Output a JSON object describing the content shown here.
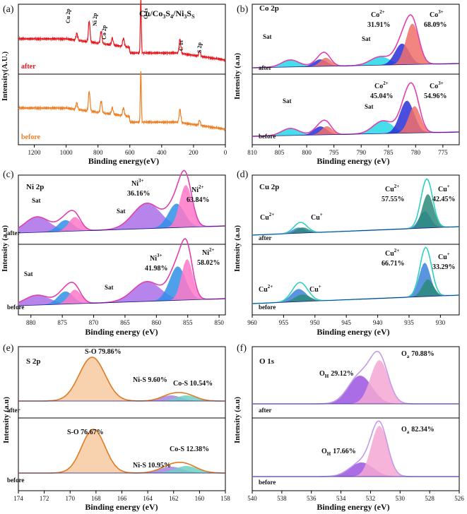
{
  "chart_data": [
    {
      "type": "line",
      "panel": "(a)",
      "title": "Cu/Co3S4/Ni3S2",
      "xlabel": "Binding energy(eV)",
      "ylabel": "Intensity(A.U.)",
      "xlim": [
        1300,
        0
      ],
      "xticks": [
        1200,
        1000,
        800,
        600,
        400,
        200,
        0
      ],
      "series": [
        {
          "name": "after",
          "color": "#e8151c"
        },
        {
          "name": "before",
          "color": "#ee7d22"
        }
      ],
      "peak_labels": [
        "Cu 2p",
        "Ni 2p",
        "Co 2p",
        "O 1s",
        "C 1s",
        "S 2p"
      ]
    },
    {
      "type": "area",
      "panel": "(b)",
      "title": "Co 2p",
      "xlabel": "Binding energy (eV)",
      "ylabel": "Intensity (a.u)",
      "xlim": [
        810,
        772
      ],
      "xticks": [
        810,
        805,
        800,
        795,
        790,
        785,
        780,
        775
      ],
      "series": [
        {
          "name": "after",
          "annotations": [
            {
              "label": "Sat",
              "position": 802.5
            },
            {
              "label": "Sat",
              "position": 786
            },
            {
              "label": "Co2+",
              "percent": "31.91%",
              "position": 782.5
            },
            {
              "label": "Co3+",
              "percent": "68.09%",
              "position": 780.6
            }
          ]
        },
        {
          "name": "before",
          "annotations": [
            {
              "label": "Sat",
              "position": 802.5
            },
            {
              "label": "Sat",
              "position": 786
            },
            {
              "label": "Co2+",
              "percent": "45.04%",
              "position": 781.5
            },
            {
              "label": "Co3+",
              "percent": "54.96%",
              "position": 780.2
            }
          ]
        }
      ]
    },
    {
      "type": "area",
      "panel": "(c)",
      "title": "Ni 2p",
      "xlabel": "Binding energy (eV)",
      "ylabel": "Intensity (a.u)",
      "xlim": [
        882,
        849
      ],
      "xticks": [
        880,
        875,
        870,
        865,
        860,
        855,
        850
      ],
      "series": [
        {
          "name": "after",
          "annotations": [
            {
              "label": "Sat",
              "position": 879
            },
            {
              "label": "Sat",
              "position": 861.5
            },
            {
              "label": "Ni 3+",
              "percent": "36.16%",
              "position": 856.8
            },
            {
              "label": "Ni 2+",
              "percent": "63.84%",
              "position": 855.3
            }
          ]
        },
        {
          "name": "before",
          "annotations": [
            {
              "label": "Sat",
              "position": 879
            },
            {
              "label": "Sat",
              "position": 861.5
            },
            {
              "label": "Ni 3+",
              "percent": "41.98%",
              "position": 856.5
            },
            {
              "label": "Ni 2+",
              "percent": "58.02%",
              "position": 855.1
            }
          ]
        }
      ]
    },
    {
      "type": "area",
      "panel": "(d)",
      "title": "Cu 2p",
      "xlabel": "Binding energy (eV)",
      "ylabel": "Intensity (a.u)",
      "xlim": [
        960,
        927
      ],
      "xticks": [
        960,
        955,
        950,
        945,
        940,
        935,
        930
      ],
      "series": [
        {
          "name": "after",
          "annotations": [
            {
              "label": "Cu2+",
              "position": 952.5
            },
            {
              "label": "Cu+",
              "position": 952
            },
            {
              "label": "Cu2+",
              "percent": "57.55%",
              "position": 932.5
            },
            {
              "label": "Cu+",
              "percent": "42.45%",
              "position": 932
            }
          ]
        },
        {
          "name": "before",
          "annotations": [
            {
              "label": "Cu2+",
              "position": 952.5
            },
            {
              "label": "Cu+",
              "position": 952
            },
            {
              "label": "Cu2+",
              "percent": "66.71%",
              "position": 932.5
            },
            {
              "label": "Cu+",
              "percent": "33.29%",
              "position": 932
            }
          ]
        }
      ]
    },
    {
      "type": "area",
      "panel": "(e)",
      "title": "S 2p",
      "xlabel": "Binding energy (eV)",
      "ylabel": "Intensity (a.u)",
      "xlim": [
        174,
        158
      ],
      "xticks": [
        174,
        172,
        170,
        168,
        166,
        164,
        162,
        160,
        158
      ],
      "series": [
        {
          "name": "after",
          "annotations": [
            {
              "label": "S-O",
              "percent": "79.86%",
              "position": 168.3
            },
            {
              "label": "Ni-S",
              "percent": "9.60%",
              "position": 162.2
            },
            {
              "label": "Co-S",
              "percent": "10.54%",
              "position": 161
            }
          ]
        },
        {
          "name": "before",
          "annotations": [
            {
              "label": "S-O",
              "percent": "76.67%",
              "position": 168.2
            },
            {
              "label": "Ni-S",
              "percent": "10.95%",
              "position": 162.2
            },
            {
              "label": "Co-S",
              "percent": "12.38%",
              "position": 161
            }
          ]
        }
      ]
    },
    {
      "type": "area",
      "panel": "(f)",
      "title": "O 1s",
      "xlabel": "Binding energy (eV)",
      "ylabel": "Intensity (a.u)",
      "xlim": [
        540,
        526
      ],
      "xticks": [
        540,
        538,
        536,
        534,
        532,
        530,
        528,
        526
      ],
      "series": [
        {
          "name": "after",
          "annotations": [
            {
              "label": "OH",
              "percent": "29.12%",
              "position": 532.7
            },
            {
              "label": "Oa",
              "percent": "70.88%",
              "position": 531.4
            }
          ]
        },
        {
          "name": "before",
          "annotations": [
            {
              "label": "OH",
              "percent": "17.66%",
              "position": 532.6
            },
            {
              "label": "Oa",
              "percent": "82.34%",
              "position": 531.4
            }
          ]
        }
      ]
    }
  ],
  "text": {
    "a_panel": "(a)",
    "a_title_main": "Cu/Co",
    "a_title_s3": "3",
    "a_title_s": "S",
    "a_title_s4": "4",
    "a_title_ni": "/Ni",
    "a_title_s2": "S",
    "a_after": "after",
    "a_before": "before",
    "a_cu2p": "Cu 2p",
    "a_ni2p": "Ni 2p",
    "a_co2p": "Co 2p",
    "a_o1s": "O 1s",
    "a_c1s": "C 1s",
    "a_s2p": "S 2p",
    "a_xlabel": "Binding energy(eV)",
    "a_ylabel": "Intensity(A.U.)",
    "b_panel": "(b)",
    "b_title": "Co 2p",
    "b_after": "after",
    "b_before": "before",
    "b_sat": "Sat",
    "b_co": "Co",
    "b_sup2": "2+",
    "b_sup3": "3+",
    "b_after_co2": "31.91%",
    "b_after_co3": "68.09%",
    "b_before_co2": "45.04%",
    "b_before_co3": "54.96%",
    "b_xlabel": "Binding energy (eV)",
    "b_ylabel": "Intensity (a.u)",
    "c_panel": "(c)",
    "c_title": "Ni 2p",
    "c_after": "after",
    "c_before": "before",
    "c_sat": "Sat",
    "c_ni": "Ni",
    "c_sup3": "3+",
    "c_sup2": "2+",
    "c_after_ni3": "36.16%",
    "c_after_ni2": "63.84%",
    "c_before_ni3": "41.98%",
    "c_before_ni2": "58.02%",
    "c_xlabel": "Binding energy (eV)",
    "c_ylabel": "Intensity (a.u)",
    "d_panel": "(d)",
    "d_title": "Cu 2p",
    "d_after": "after",
    "d_before": "before",
    "d_cu": "Cu",
    "d_sup2": "2+",
    "d_supp": "+",
    "d_after_cu2": "57.55%",
    "d_after_cu1": "42.45%",
    "d_before_cu2": "66.71%",
    "d_before_cu1": "33.29%",
    "d_xlabel": "Binding energy (eV)",
    "d_ylabel": "Intensity (a.u)",
    "e_panel": "(e)",
    "e_title": "S 2p",
    "e_after": "after",
    "e_before": "before",
    "e_after_so": "S-O  79.86%",
    "e_after_nis": "Ni-S  9.60%",
    "e_after_cos": "Co-S  10.54%",
    "e_before_so": "S-O  76.67%",
    "e_before_nis": "Ni-S  10.95%",
    "e_before_cos": "Co-S  12.38%",
    "e_xlabel": "Binding energy (eV)",
    "e_ylabel": "Intensity (a.u)",
    "f_panel": "(f)",
    "f_title": "O 1s",
    "f_after": "after",
    "f_before": "before",
    "f_o": "O",
    "f_subh": "H",
    "f_suba": "a",
    "f_after_oh": "29.12%",
    "f_after_oa": "70.88%",
    "f_before_oh": "17.66%",
    "f_before_oa": "82.34%",
    "f_xlabel": "Binding energy (eV)",
    "f_ylabel": "Intensity (a.u)"
  },
  "colors": {
    "after_red": "#e8151c",
    "before_orange": "#ee7d22",
    "co3": "#f0706a",
    "co2": "#2a2fd6",
    "co_sat": "#27d8e8",
    "co_sat2": "#7b2fd1",
    "ni2": "#ff78c8",
    "ni3": "#2f8fe8",
    "ni_sat": "#a96ee6",
    "cu2": "#3c82d8",
    "cu1": "#2c8a7a",
    "so": "#f7caa0",
    "nis": "#a784e0",
    "cos": "#6fd0c4",
    "oa": "#f6a7d4",
    "oh": "#9b53e0",
    "env_pink": "#e75bb8",
    "env_violet": "#c29be8"
  }
}
